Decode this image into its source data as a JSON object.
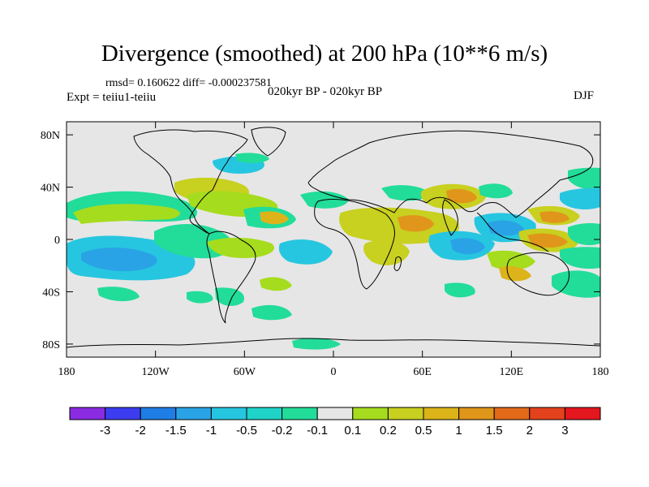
{
  "header": {
    "title": "Divergence (smoothed) at 200 hPa (10**6 m/s)",
    "stats": "rmsd= 0.160622 diff= -0.000237581",
    "expt": "Expt = teiiu1-teiiu",
    "period": "020kyr BP - 020kyr BP",
    "season": "DJF"
  },
  "map": {
    "background": "#e6e6e6",
    "lon_ticks": [
      {
        "value": -180,
        "label": "180"
      },
      {
        "value": -120,
        "label": "120W"
      },
      {
        "value": -60,
        "label": "60W"
      },
      {
        "value": 0,
        "label": "0"
      },
      {
        "value": 60,
        "label": "60E"
      },
      {
        "value": 120,
        "label": "120E"
      },
      {
        "value": 180,
        "label": "180"
      }
    ],
    "lat_ticks": [
      {
        "value": 80,
        "label": "80N"
      },
      {
        "value": 40,
        "label": "40N"
      },
      {
        "value": 0,
        "label": "0"
      },
      {
        "value": -40,
        "label": "40S"
      },
      {
        "value": -80,
        "label": "80S"
      }
    ]
  },
  "colorbar": {
    "colors": [
      "#8a2be2",
      "#3c3cf0",
      "#1e7ee6",
      "#2aa3e6",
      "#26c6e0",
      "#1fd3c8",
      "#22dc9a",
      "#e6e6e6",
      "#a6dc1e",
      "#c8d020",
      "#dcb41a",
      "#e0961a",
      "#e26a18",
      "#e4421c",
      "#e4161e"
    ],
    "labels": [
      "-3",
      "-2",
      "-1.5",
      "-1",
      "-0.5",
      "-0.2",
      "-0.1",
      "0.1",
      "0.2",
      "0.5",
      "1",
      "1.5",
      "2",
      "3"
    ]
  }
}
